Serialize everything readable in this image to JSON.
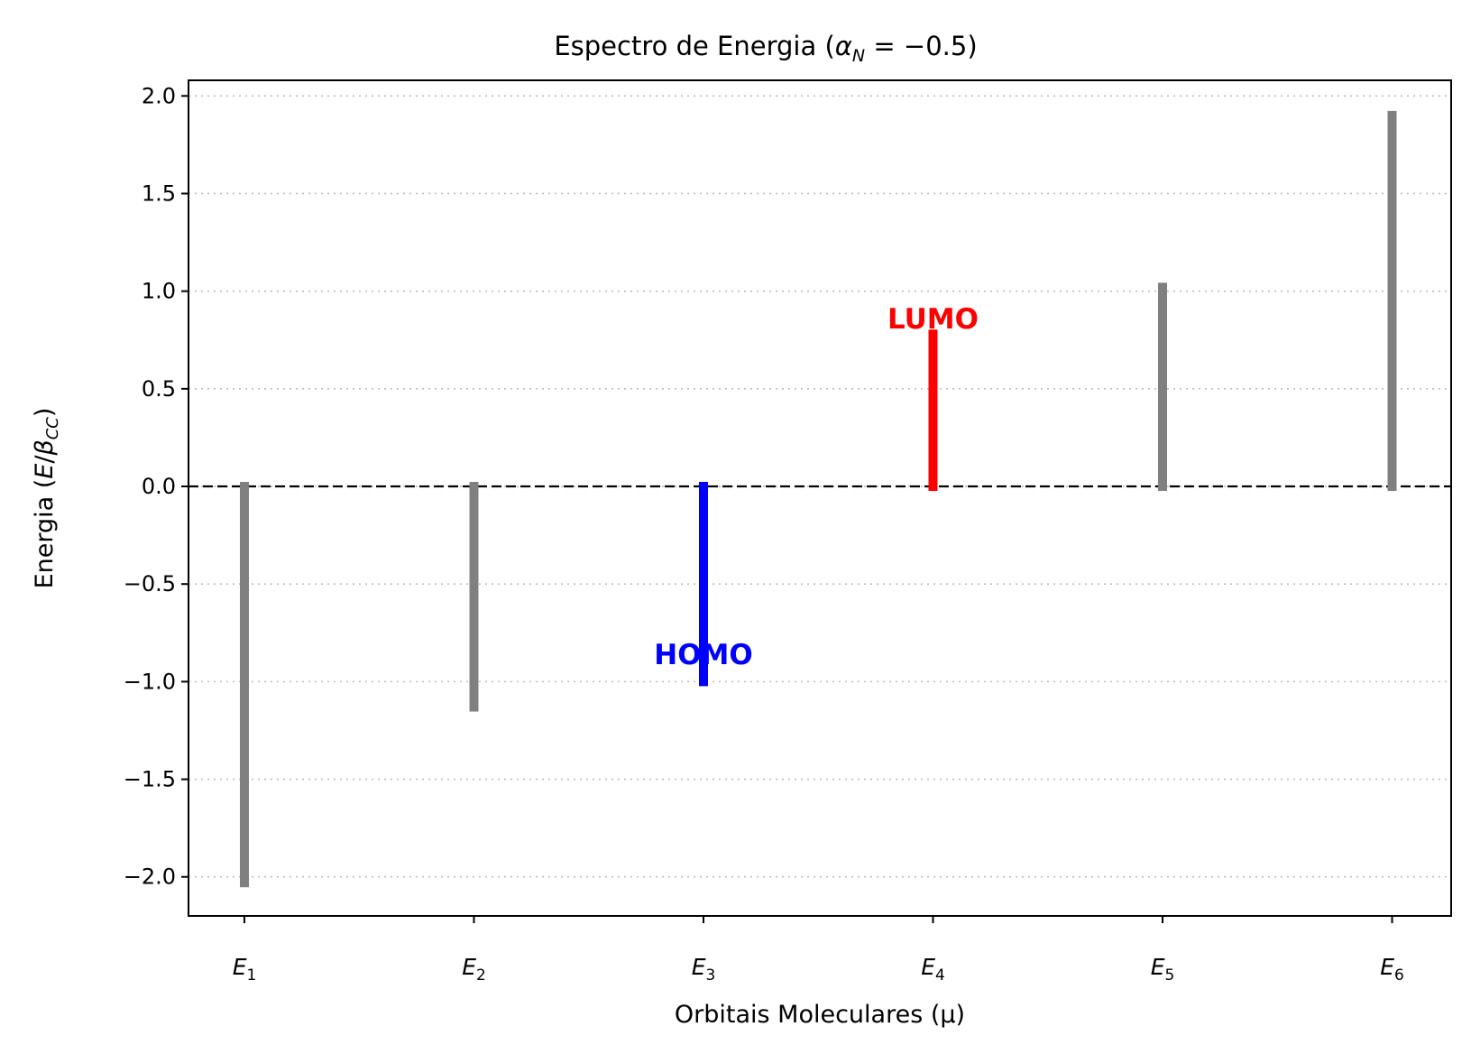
{
  "chart_data": {
    "type": "bar",
    "title": "Espectro de Energia (α_N = −0.5)",
    "title_parts": {
      "prefix": "Espectro de Energia (",
      "alpha": "α",
      "sub": "N",
      "equals": " = ",
      "value": "−0.5",
      "suffix": ")"
    },
    "xlabel": "Orbitais Moleculares (μ)",
    "ylabel": "Energia (E/β_CC)",
    "ylabel_parts": {
      "prefix": "Energia (",
      "e": "E",
      "slash": "/",
      "beta": "β",
      "sub": "CC",
      "suffix": ")"
    },
    "categories": [
      "E1",
      "E2",
      "E3",
      "E4",
      "E5",
      "E6"
    ],
    "category_parts": [
      {
        "base": "E",
        "sub": "1"
      },
      {
        "base": "E",
        "sub": "2"
      },
      {
        "base": "E",
        "sub": "3"
      },
      {
        "base": "E",
        "sub": "4"
      },
      {
        "base": "E",
        "sub": "5"
      },
      {
        "base": "E",
        "sub": "6"
      }
    ],
    "values": [
      -2.03,
      -1.13,
      -1.0,
      0.78,
      1.02,
      1.9
    ],
    "bar_colors": [
      "#808080",
      "#808080",
      "#0000ff",
      "#ff0000",
      "#808080",
      "#808080"
    ],
    "ylim": [
      -2.2,
      2.08
    ],
    "yticks": [
      2.0,
      1.5,
      1.0,
      0.5,
      0.0,
      -0.5,
      -1.0,
      -1.5,
      -2.0
    ],
    "ytick_labels": [
      "2.0",
      "1.5",
      "1.0",
      "0.5",
      "0.0",
      "−0.5",
      "−1.0",
      "−1.5",
      "−2.0"
    ],
    "grid": "horizontal dotted",
    "reference_line": {
      "y": 0.0,
      "style": "dashed",
      "color": "#000000"
    },
    "annotations": [
      {
        "text": "HOMO",
        "category": "E3",
        "y": -0.86,
        "color": "#0000ff"
      },
      {
        "text": "LUMO",
        "category": "E4",
        "y": 0.86,
        "color": "#ff0000"
      }
    ]
  }
}
